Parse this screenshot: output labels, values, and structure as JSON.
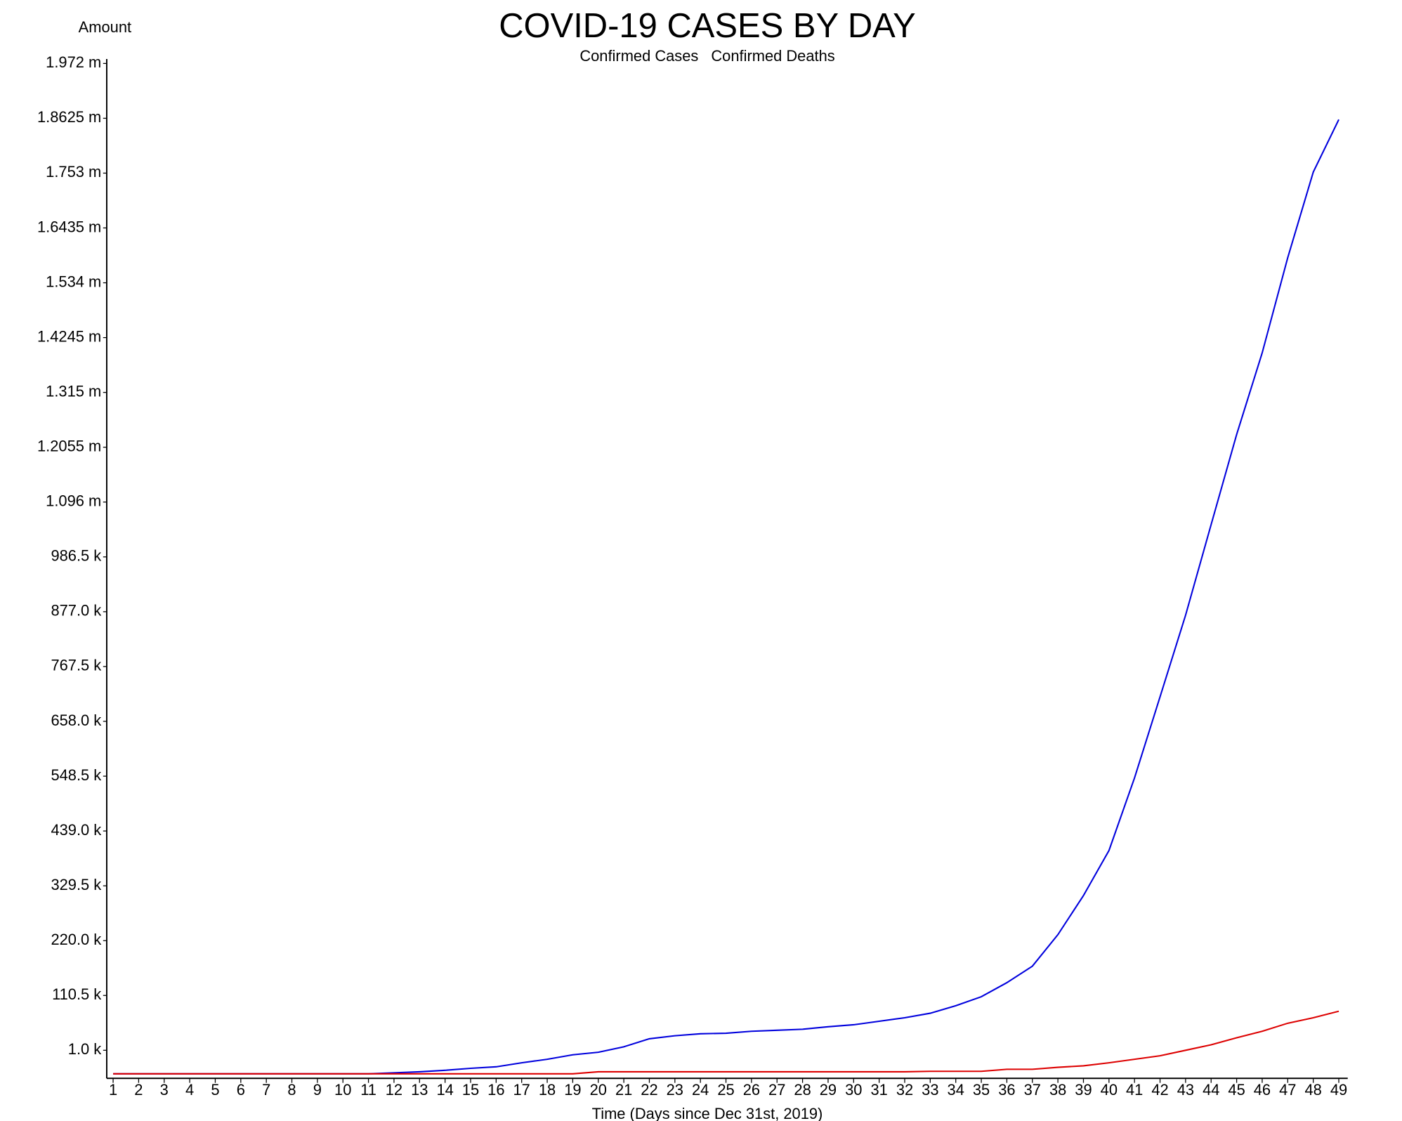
{
  "chart_data": {
    "type": "line",
    "title": "COVID-19 CASES BY DAY",
    "xlabel": "Time (Days since Dec 31st, 2019)",
    "ylabel": "Amount",
    "x": [
      1,
      2,
      3,
      4,
      5,
      6,
      7,
      8,
      9,
      10,
      11,
      12,
      13,
      14,
      15,
      16,
      17,
      18,
      19,
      20,
      21,
      22,
      23,
      24,
      25,
      26,
      27,
      28,
      29,
      30,
      31,
      32,
      33,
      34,
      35,
      36,
      37,
      38,
      39,
      40,
      41,
      42,
      43,
      44,
      45,
      46,
      47,
      48,
      49
    ],
    "series": [
      {
        "name": "Confirmed Cases",
        "color": "#0000dd",
        "values": [
          -46000,
          -46000,
          -46000,
          -46000,
          -46000,
          -46000,
          -46000,
          -46000,
          -46000,
          -46000,
          -46000,
          -44000,
          -42000,
          -39000,
          -35000,
          -32000,
          -24000,
          -17000,
          -8000,
          -3000,
          8000,
          24000,
          30000,
          34000,
          35000,
          39000,
          41000,
          43000,
          48000,
          52000,
          59000,
          66000,
          75000,
          90000,
          108000,
          136000,
          169000,
          232000,
          310000,
          400000,
          545000,
          707000,
          870000,
          1051000,
          1231000,
          1394000,
          1584000,
          1755000,
          1860000
        ]
      },
      {
        "name": "Confirmed Deaths",
        "color": "#dd0000",
        "values": [
          -46000,
          -46000,
          -46000,
          -46000,
          -46000,
          -46000,
          -46000,
          -46000,
          -46000,
          -46000,
          -46000,
          -46000,
          -46000,
          -46000,
          -46000,
          -46000,
          -46000,
          -46000,
          -46000,
          -42000,
          -42000,
          -42000,
          -42000,
          -42000,
          -42000,
          -42000,
          -42000,
          -42000,
          -42000,
          -42000,
          -42000,
          -42000,
          -41000,
          -41000,
          -41000,
          -37000,
          -37000,
          -33000,
          -30000,
          -24000,
          -17000,
          -10000,
          1000,
          12000,
          26000,
          39000,
          55000,
          66000,
          79000
        ]
      }
    ],
    "xlim": [
      0.75,
      49.35
    ],
    "xticks": [
      1,
      2,
      3,
      4,
      5,
      6,
      7,
      8,
      9,
      10,
      11,
      12,
      13,
      14,
      15,
      16,
      17,
      18,
      19,
      20,
      21,
      22,
      23,
      24,
      25,
      26,
      27,
      28,
      29,
      30,
      31,
      32,
      33,
      34,
      35,
      36,
      37,
      38,
      39,
      40,
      41,
      42,
      43,
      44,
      45,
      46,
      47,
      48,
      49
    ],
    "ylim": [
      -55000,
      1981000
    ],
    "yticks": [
      {
        "value": 1000,
        "label": "1.0 k"
      },
      {
        "value": 110500,
        "label": "110.5 k"
      },
      {
        "value": 220000,
        "label": "220.0 k"
      },
      {
        "value": 329500,
        "label": "329.5 k"
      },
      {
        "value": 439000,
        "label": "439.0 k"
      },
      {
        "value": 548500,
        "label": "548.5 k"
      },
      {
        "value": 658000,
        "label": "658.0 k"
      },
      {
        "value": 767500,
        "label": "767.5 k"
      },
      {
        "value": 877000,
        "label": "877.0 k"
      },
      {
        "value": 986500,
        "label": "986.5 k"
      },
      {
        "value": 1096000,
        "label": "1.096 m"
      },
      {
        "value": 1205500,
        "label": "1.2055 m"
      },
      {
        "value": 1315000,
        "label": "1.315 m"
      },
      {
        "value": 1424500,
        "label": "1.4245 m"
      },
      {
        "value": 1534000,
        "label": "1.534 m"
      },
      {
        "value": 1643500,
        "label": "1.6435 m"
      },
      {
        "value": 1753000,
        "label": "1.753 m"
      },
      {
        "value": 1862500,
        "label": "1.8625 m"
      },
      {
        "value": 1972000,
        "label": "1.972 m"
      }
    ],
    "grid": false,
    "legend": "top"
  }
}
